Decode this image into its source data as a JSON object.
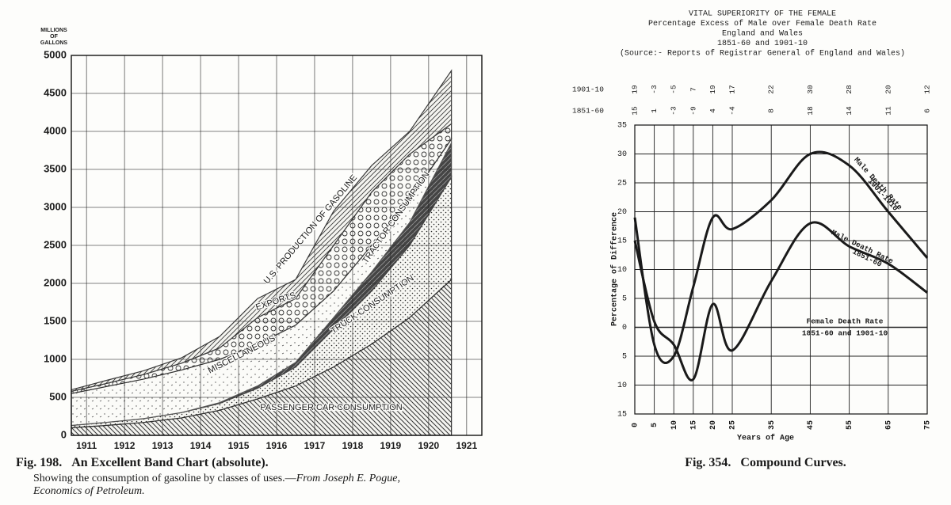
{
  "chart_data": [
    {
      "type": "area",
      "stacked": true,
      "y_label": [
        "MILLIONS",
        "OF",
        "GALLONS"
      ],
      "x": [
        1910.6,
        1911.5,
        1912.5,
        1913.5,
        1914.5,
        1915.5,
        1916.5,
        1917.5,
        1918.5,
        1919.5,
        1920.6
      ],
      "xlim": [
        1910.6,
        1921.4
      ],
      "xticks": [
        1911,
        1912,
        1913,
        1914,
        1915,
        1916,
        1917,
        1918,
        1919,
        1920,
        1921
      ],
      "ylim": [
        0,
        5000
      ],
      "yticks": [
        0,
        500,
        1000,
        1500,
        2000,
        2500,
        3000,
        3500,
        4000,
        4500,
        5000
      ],
      "grid": true,
      "series": [
        {
          "name": "PASSENGER CAR CONSUMPTION",
          "color": "#333333",
          "values": [
            100,
            130,
            170,
            230,
            330,
            480,
            650,
            900,
            1200,
            1550,
            2050
          ]
        },
        {
          "name": "TRUCK CONSUMPTION",
          "color": "#2b2b2b",
          "values": [
            30,
            40,
            50,
            70,
            90,
            140,
            250,
            500,
            700,
            950,
            1350
          ]
        },
        {
          "name": "TRACTOR CONSUMPTION",
          "color": "#444444",
          "values": [
            0,
            0,
            0,
            0,
            10,
            30,
            60,
            150,
            250,
            300,
            450
          ]
        },
        {
          "name": "MISCELLANEOUS",
          "color": "#555555",
          "values": [
            420,
            470,
            520,
            560,
            570,
            550,
            490,
            350,
            350,
            300,
            50
          ]
        },
        {
          "name": "EXPORTS",
          "color": "#333333",
          "values": [
            30,
            40,
            60,
            90,
            150,
            350,
            350,
            600,
            700,
            600,
            200
          ]
        },
        {
          "name": "U.S. PRODUCTION OF GASOLINE",
          "color": "#3a3a3a",
          "values": [
            20,
            40,
            50,
            70,
            150,
            250,
            250,
            450,
            350,
            300,
            700
          ]
        }
      ],
      "caption": {
        "figure": "Fig. 198.",
        "title": "An Excellent Band Chart (absolute).",
        "text": "Showing the consumption of gasoline by classes of uses.—",
        "source": [
          "From Joseph E. Pogue,",
          "Economics of Petroleum."
        ]
      }
    },
    {
      "type": "line",
      "title_lines": [
        "VITAL SUPERIORITY OF THE FEMALE",
        "Percentage Excess of Male over Female Death Rate",
        "England and Wales",
        "1851-60 and 1901-10",
        "(Source:- Reports of Registrar General of England and Wales)"
      ],
      "x": [
        0,
        5,
        10,
        15,
        20,
        25,
        35,
        45,
        55,
        65,
        75
      ],
      "xlim": [
        0,
        75
      ],
      "xticks": [
        0,
        5,
        10,
        15,
        20,
        25,
        35,
        45,
        55,
        65,
        75
      ],
      "ylim": [
        -15,
        35
      ],
      "yticks": [
        {
          "value": -15,
          "label": "15"
        },
        {
          "value": -10,
          "label": "10"
        },
        {
          "value": -5,
          "label": "5"
        },
        0,
        5,
        10,
        15,
        20,
        25,
        30,
        35
      ],
      "grid": true,
      "x_label": "Years of Age",
      "y_label": "Percentage of Difference",
      "series": [
        {
          "name": "1901-10",
          "color": "#1a1a1a",
          "values": [
            19,
            -3,
            -5,
            7,
            19,
            17,
            22,
            30,
            28,
            20,
            12
          ],
          "annotation": [
            "Male Death Rate",
            "1901-1910"
          ]
        },
        {
          "name": "1851-60",
          "color": "#1a1a1a",
          "values": [
            15,
            1,
            -3,
            -9,
            4,
            -4,
            8,
            18,
            14,
            11,
            6
          ],
          "annotation": [
            "Male Death Rate",
            "1851-60"
          ]
        }
      ],
      "baseline_annotation": [
        "Female Death Rate",
        "1851-60 and 1901-10"
      ],
      "caption": {
        "figure": "Fig. 354.",
        "title": "Compound Curves."
      }
    }
  ]
}
